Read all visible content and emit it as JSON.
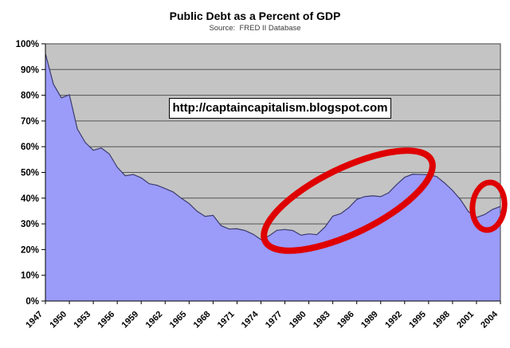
{
  "watermark": {
    "text": "http://captaincapitalism.blogspot.com"
  },
  "chart_data": {
    "type": "area",
    "title": "Public Debt as a Percent of GDP",
    "subtitle": "Source:  FRED II Database",
    "xlabel": "",
    "ylabel": "",
    "ylim": [
      0,
      100
    ],
    "grid": "horizontal",
    "legend": "none",
    "y_tick_labels": [
      "0%",
      "10%",
      "20%",
      "30%",
      "40%",
      "50%",
      "60%",
      "70%",
      "80%",
      "90%",
      "100%"
    ],
    "x_tick_labels": [
      "1947",
      "1950",
      "1953",
      "1956",
      "1959",
      "1962",
      "1965",
      "1968",
      "1971",
      "1974",
      "1977",
      "1980",
      "1983",
      "1986",
      "1989",
      "1992",
      "1995",
      "1998",
      "2001",
      "2004"
    ],
    "series": [
      {
        "name": "Public debt as a percent of GDP",
        "years": [
          1947,
          1948,
          1949,
          1950,
          1951,
          1952,
          1953,
          1954,
          1955,
          1956,
          1957,
          1958,
          1959,
          1960,
          1961,
          1962,
          1963,
          1964,
          1965,
          1966,
          1967,
          1968,
          1969,
          1970,
          1971,
          1972,
          1973,
          1974,
          1975,
          1976,
          1977,
          1978,
          1979,
          1980,
          1981,
          1982,
          1983,
          1984,
          1985,
          1986,
          1987,
          1988,
          1989,
          1990,
          1991,
          1992,
          1993,
          1994,
          1995,
          1996,
          1997,
          1998,
          1999,
          2000,
          2001,
          2002,
          2003,
          2004
        ],
        "values": [
          96.2,
          84.3,
          79.0,
          80.2,
          66.9,
          61.6,
          58.6,
          59.5,
          57.2,
          52.0,
          48.7,
          49.2,
          47.9,
          45.6,
          45.0,
          43.7,
          42.4,
          40.0,
          37.9,
          34.9,
          32.9,
          33.3,
          29.3,
          28.0,
          28.1,
          27.4,
          26.0,
          23.9,
          25.3,
          27.5,
          27.8,
          27.4,
          25.6,
          26.1,
          25.8,
          28.7,
          33.0,
          34.0,
          36.3,
          39.5,
          40.6,
          40.9,
          40.6,
          42.1,
          45.3,
          48.1,
          49.3,
          49.2,
          49.1,
          48.4,
          45.9,
          43.0,
          39.4,
          34.7,
          32.5,
          33.6,
          35.6,
          36.8
        ]
      }
    ],
    "annotations": [
      {
        "shape": "ellipse",
        "note": "hand-drawn red circle around the 1974-1995 debt run-up",
        "cx": 437,
        "cy": 252,
        "rx": 116,
        "ry": 41,
        "rotate_deg": -26,
        "stroke_width": 8
      },
      {
        "shape": "ellipse",
        "note": "hand-drawn red circle around the 2002-2004 uptick",
        "cx": 613,
        "cy": 259,
        "rx": 20,
        "ry": 30,
        "rotate_deg": 6,
        "stroke_width": 7
      }
    ],
    "colors": {
      "area_fill": "#9B9BFA",
      "area_line": "#3C3C6E",
      "plot_background": "#C4C4C4",
      "gridline": "#555555",
      "plot_border": "#444444",
      "axis": "#000000",
      "page_background": "#FFFFFF",
      "annotation_red": "#DF0000",
      "text": "#000000"
    }
  }
}
